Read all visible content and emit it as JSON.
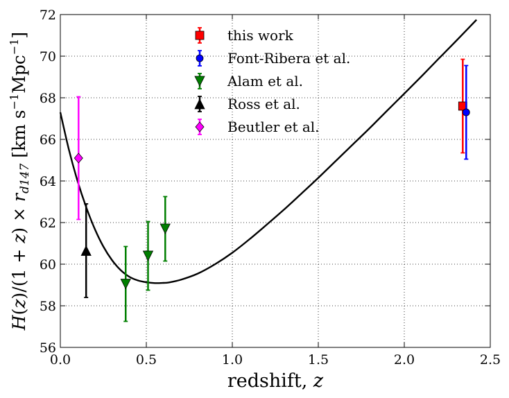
{
  "chart_data": {
    "type": "scatter",
    "xlabel_text": "redshift, ",
    "xlabel_var": "z",
    "ylabel": "H(z)/(1+z) × r_d147 [km s⁻¹ Mpc⁻¹]",
    "ylabel_parts": {
      "H": "H",
      "open1": "(",
      "z1": "z",
      "mid": ")/(1 + ",
      "z2": "z",
      "close1": ") × ",
      "r": "r",
      "sub": "d147",
      "unit_open": " [",
      "km": "km",
      "s": " s",
      "exp1": "−1",
      "mpc": "Mpc",
      "exp2": "−1",
      "unit_close": "]"
    },
    "xlim": [
      0.0,
      2.5
    ],
    "ylim": [
      56,
      72
    ],
    "x_ticks": [
      "0.0",
      "0.5",
      "1.0",
      "1.5",
      "2.0",
      "2.5"
    ],
    "y_ticks": [
      "56",
      "58",
      "60",
      "62",
      "64",
      "66",
      "68",
      "70",
      "72"
    ],
    "x_tick_values": [
      0.0,
      0.5,
      1.0,
      1.5,
      2.0,
      2.5
    ],
    "y_tick_values": [
      56,
      58,
      60,
      62,
      64,
      66,
      68,
      70,
      72
    ],
    "grid": true,
    "legend_position": "top-center",
    "curve": {
      "name": "model",
      "color": "#000000",
      "points": [
        [
          0.0,
          67.3
        ],
        [
          0.05,
          65.5
        ],
        [
          0.1,
          64.0
        ],
        [
          0.15,
          62.75
        ],
        [
          0.2,
          61.7
        ],
        [
          0.25,
          60.85
        ],
        [
          0.3,
          60.2
        ],
        [
          0.35,
          59.72
        ],
        [
          0.4,
          59.4
        ],
        [
          0.45,
          59.22
        ],
        [
          0.5,
          59.13
        ],
        [
          0.55,
          59.09
        ],
        [
          0.6,
          59.1
        ],
        [
          0.63,
          59.12
        ],
        [
          0.7,
          59.25
        ],
        [
          0.8,
          59.55
        ],
        [
          0.9,
          60.0
        ],
        [
          1.0,
          60.55
        ],
        [
          1.1,
          61.2
        ],
        [
          1.2,
          61.9
        ],
        [
          1.3,
          62.62
        ],
        [
          1.4,
          63.38
        ],
        [
          1.5,
          64.15
        ],
        [
          1.6,
          64.95
        ],
        [
          1.7,
          65.75
        ],
        [
          1.8,
          66.55
        ],
        [
          1.9,
          67.38
        ],
        [
          2.0,
          68.2
        ],
        [
          2.1,
          69.03
        ],
        [
          2.2,
          69.88
        ],
        [
          2.3,
          70.72
        ],
        [
          2.42,
          71.75
        ]
      ]
    },
    "series": [
      {
        "name": "this work",
        "color": "#ff0000",
        "marker": "square",
        "points": [
          {
            "x": 2.34,
            "y": 67.6,
            "err": 2.25
          }
        ]
      },
      {
        "name": "Font-Ribera et al.",
        "color": "#0000ff",
        "marker": "circle",
        "points": [
          {
            "x": 2.36,
            "y": 67.3,
            "err": 2.25
          }
        ]
      },
      {
        "name": "Alam et al.",
        "color": "#007f00",
        "marker": "triangle-down",
        "points": [
          {
            "x": 0.38,
            "y": 59.05,
            "err": 1.8
          },
          {
            "x": 0.51,
            "y": 60.4,
            "err": 1.65
          },
          {
            "x": 0.61,
            "y": 61.7,
            "err": 1.55
          }
        ]
      },
      {
        "name": "Ross et al.",
        "color": "#000000",
        "marker": "triangle-up",
        "points": [
          {
            "x": 0.15,
            "y": 60.65,
            "err": 2.25
          }
        ]
      },
      {
        "name": "Beutler et al.",
        "color": "#ff00ff",
        "marker": "diamond",
        "points": [
          {
            "x": 0.106,
            "y": 65.1,
            "err": 2.95
          }
        ]
      }
    ]
  }
}
